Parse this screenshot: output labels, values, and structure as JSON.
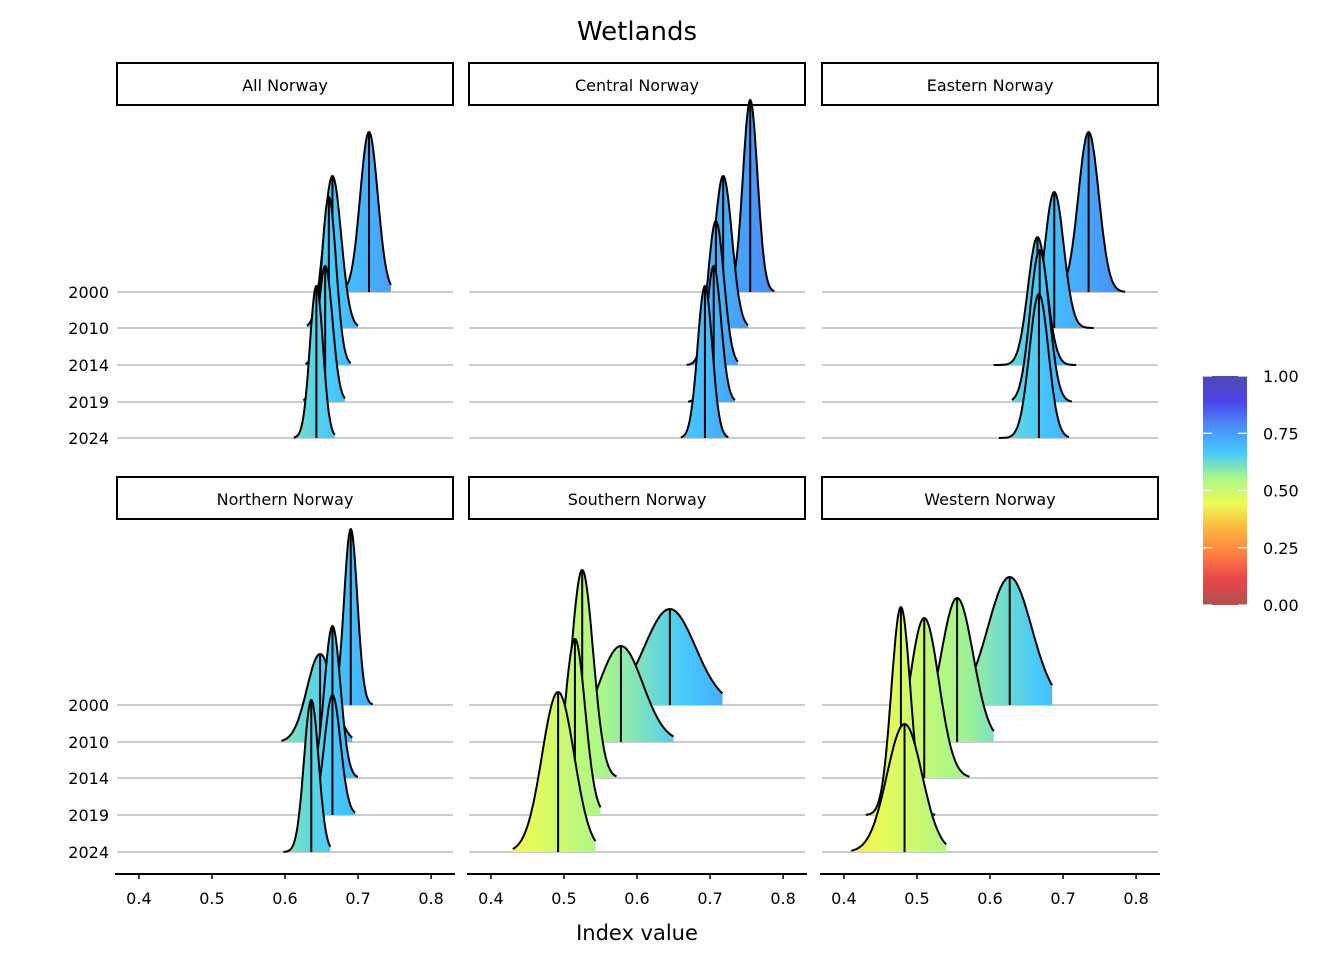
{
  "chart_data": {
    "type": "ridgeline",
    "title": "Wetlands",
    "xlabel": "Index value",
    "ylabel": "",
    "xlim": [
      0.37,
      0.83
    ],
    "x_ticks": [
      "0.4",
      "0.5",
      "0.6",
      "0.7",
      "0.8"
    ],
    "x_tick_values": [
      0.4,
      0.5,
      0.6,
      0.7,
      0.8
    ],
    "y_categories": [
      "2000",
      "2010",
      "2014",
      "2019",
      "2024"
    ],
    "grid": true,
    "legend": {
      "type": "colorbar",
      "position": "right",
      "range": [
        0,
        1
      ],
      "ticks": [
        "0.00",
        "0.25",
        "0.50",
        "0.75",
        "1.00"
      ],
      "tick_values": [
        0,
        0.25,
        0.5,
        0.75,
        1.0
      ],
      "colors": [
        "#b2504f",
        "#e8454a",
        "#fd7f42",
        "#fbb53d",
        "#ecfb57",
        "#a9f78a",
        "#45c8ff",
        "#4a8ef7",
        "#4c44ea",
        "#4c4ab0"
      ]
    },
    "panels": [
      {
        "name": "All Norway",
        "series": [
          {
            "year": "2000",
            "median": 0.715,
            "sd": 0.012,
            "min": 0.685,
            "max": 0.745,
            "peak": 1.0
          },
          {
            "year": "2010",
            "median": 0.665,
            "sd": 0.012,
            "min": 0.63,
            "max": 0.7,
            "peak": 0.95
          },
          {
            "year": "2014",
            "median": 0.66,
            "sd": 0.01,
            "min": 0.628,
            "max": 0.69,
            "peak": 1.05
          },
          {
            "year": "2019",
            "median": 0.655,
            "sd": 0.01,
            "min": 0.625,
            "max": 0.682,
            "peak": 0.85
          },
          {
            "year": "2024",
            "median": 0.643,
            "sd": 0.009,
            "min": 0.612,
            "max": 0.668,
            "peak": 0.95
          }
        ]
      },
      {
        "name": "Central Norway",
        "series": [
          {
            "year": "2000",
            "median": 0.755,
            "sd": 0.01,
            "min": 0.725,
            "max": 0.788,
            "peak": 1.2
          },
          {
            "year": "2010",
            "median": 0.718,
            "sd": 0.012,
            "min": 0.685,
            "max": 0.752,
            "peak": 0.95
          },
          {
            "year": "2014",
            "median": 0.708,
            "sd": 0.011,
            "min": 0.668,
            "max": 0.738,
            "peak": 0.9
          },
          {
            "year": "2019",
            "median": 0.705,
            "sd": 0.01,
            "min": 0.67,
            "max": 0.734,
            "peak": 0.85
          },
          {
            "year": "2024",
            "median": 0.693,
            "sd": 0.01,
            "min": 0.66,
            "max": 0.725,
            "peak": 0.95
          }
        ]
      },
      {
        "name": "Eastern Norway",
        "series": [
          {
            "year": "2000",
            "median": 0.735,
            "sd": 0.014,
            "min": 0.7,
            "max": 0.785,
            "peak": 1.0
          },
          {
            "year": "2010",
            "median": 0.688,
            "sd": 0.013,
            "min": 0.655,
            "max": 0.742,
            "peak": 0.85
          },
          {
            "year": "2014",
            "median": 0.665,
            "sd": 0.013,
            "min": 0.605,
            "max": 0.718,
            "peak": 0.8
          },
          {
            "year": "2019",
            "median": 0.668,
            "sd": 0.013,
            "min": 0.63,
            "max": 0.712,
            "peak": 0.95
          },
          {
            "year": "2024",
            "median": 0.667,
            "sd": 0.013,
            "min": 0.612,
            "max": 0.708,
            "peak": 0.9
          }
        ]
      },
      {
        "name": "Northern Norway",
        "series": [
          {
            "year": "2000",
            "median": 0.69,
            "sd": 0.009,
            "min": 0.665,
            "max": 0.72,
            "peak": 1.1
          },
          {
            "year": "2010",
            "median": 0.648,
            "sd": 0.018,
            "min": 0.595,
            "max": 0.692,
            "peak": 0.55
          },
          {
            "year": "2014",
            "median": 0.665,
            "sd": 0.011,
            "min": 0.63,
            "max": 0.7,
            "peak": 0.95
          },
          {
            "year": "2019",
            "median": 0.665,
            "sd": 0.011,
            "min": 0.632,
            "max": 0.696,
            "peak": 0.75
          },
          {
            "year": "2024",
            "median": 0.636,
            "sd": 0.01,
            "min": 0.598,
            "max": 0.662,
            "peak": 0.95
          }
        ]
      },
      {
        "name": "Southern Norway",
        "series": [
          {
            "year": "2000",
            "median": 0.645,
            "sd": 0.035,
            "min": 0.56,
            "max": 0.717,
            "peak": 0.6
          },
          {
            "year": "2010",
            "median": 0.578,
            "sd": 0.03,
            "min": 0.515,
            "max": 0.65,
            "peak": 0.6
          },
          {
            "year": "2014",
            "median": 0.525,
            "sd": 0.015,
            "min": 0.475,
            "max": 0.572,
            "peak": 1.3
          },
          {
            "year": "2019",
            "median": 0.515,
            "sd": 0.014,
            "min": 0.48,
            "max": 0.55,
            "peak": 1.1
          },
          {
            "year": "2024",
            "median": 0.492,
            "sd": 0.022,
            "min": 0.43,
            "max": 0.543,
            "peak": 1.0
          }
        ]
      },
      {
        "name": "Western Norway",
        "series": [
          {
            "year": "2000",
            "median": 0.627,
            "sd": 0.03,
            "min": 0.56,
            "max": 0.685,
            "peak": 0.8
          },
          {
            "year": "2010",
            "median": 0.555,
            "sd": 0.022,
            "min": 0.5,
            "max": 0.605,
            "peak": 0.9
          },
          {
            "year": "2014",
            "median": 0.51,
            "sd": 0.02,
            "min": 0.46,
            "max": 0.572,
            "peak": 1.0
          },
          {
            "year": "2019",
            "median": 0.478,
            "sd": 0.013,
            "min": 0.43,
            "max": 0.525,
            "peak": 1.3
          },
          {
            "year": "2024",
            "median": 0.483,
            "sd": 0.024,
            "min": 0.41,
            "max": 0.54,
            "peak": 0.8
          }
        ]
      }
    ]
  }
}
